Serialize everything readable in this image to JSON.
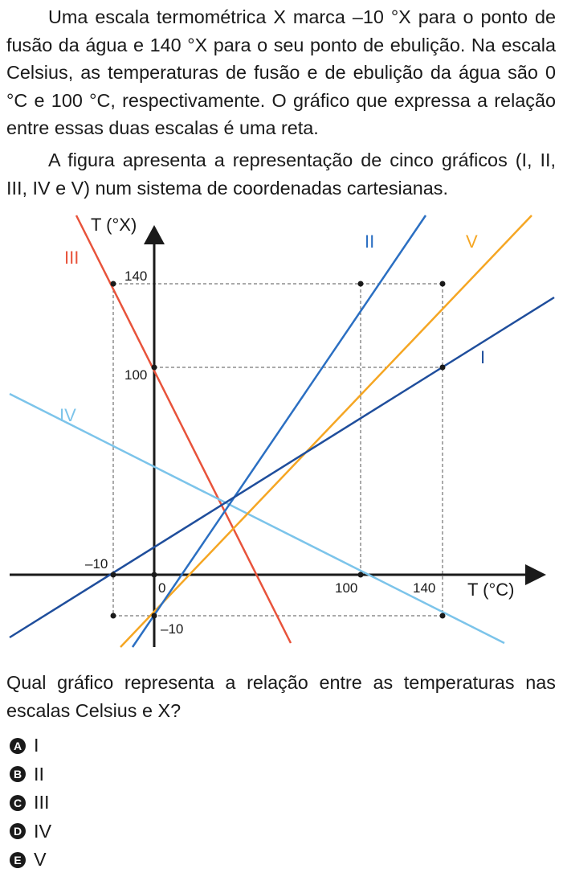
{
  "paragraphs": [
    "Uma escala termométrica X marca –10 °X para o ponto de fusão da água e 140 °X para o seu ponto de ebulição. Na escala Celsius, as temperaturas de fusão e de ebulição da água são 0 °C e 100 °C, respectivamente. O gráfico que expressa a relação entre essas duas escalas é uma reta.",
    "A figura apresenta a representação de cinco gráficos (I, II, III, IV e V) num sistema de coordenadas cartesianas."
  ],
  "figure": {
    "y_axis_label": "T (°X)",
    "x_axis_label": "T (°C)",
    "y_tick_labels": [
      "140",
      "100",
      "–10"
    ],
    "x_tick_labels": [
      "–10",
      "0",
      "100",
      "140"
    ],
    "line_labels": [
      "I",
      "II",
      "III",
      "IV",
      "V"
    ]
  },
  "question": "Qual gráfico representa a relação entre as temperaturas nas escalas Celsius e X?",
  "options": [
    {
      "letter": "A",
      "text": "I"
    },
    {
      "letter": "B",
      "text": "II"
    },
    {
      "letter": "C",
      "text": "III"
    },
    {
      "letter": "D",
      "text": "IV"
    },
    {
      "letter": "E",
      "text": "V"
    }
  ]
}
